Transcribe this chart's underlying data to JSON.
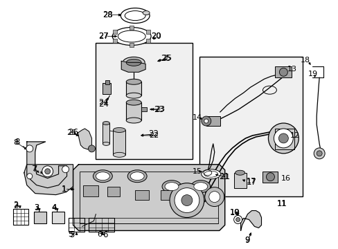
{
  "bg_color": "#ffffff",
  "line_color": "#000000",
  "box_fill": "#f0f0f0",
  "fig_width": 4.89,
  "fig_height": 3.6,
  "dpi": 100
}
